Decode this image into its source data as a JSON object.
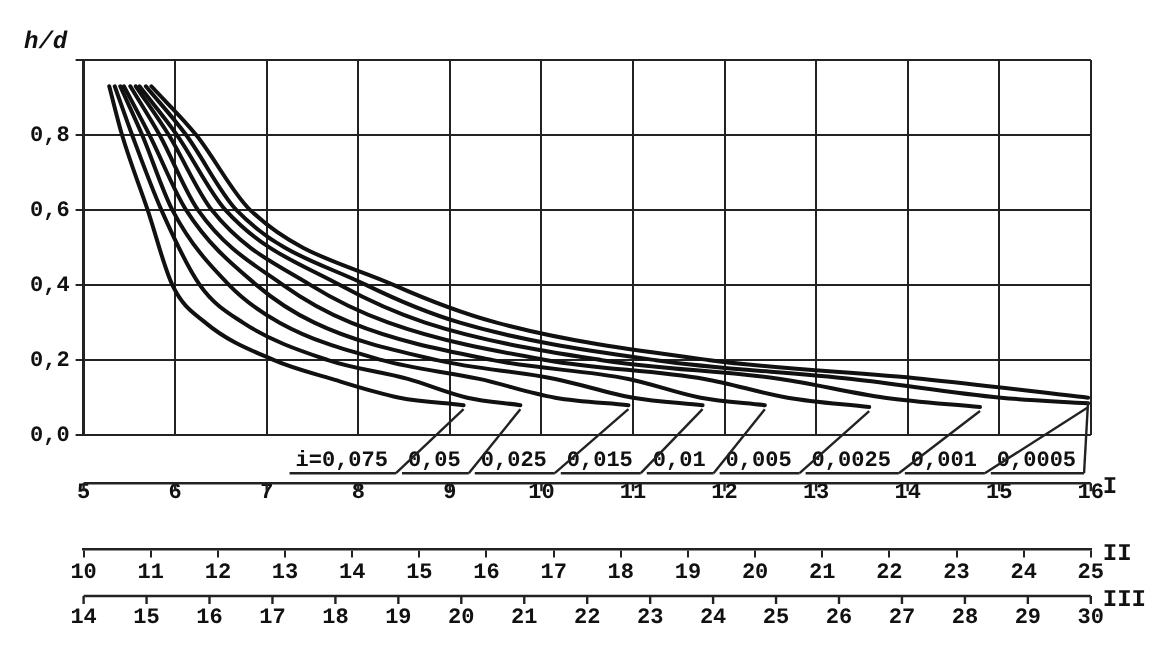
{
  "chart_data": {
    "type": "line",
    "ylabel": "h/d",
    "xlabel": "I",
    "x2label": "II",
    "annotations": [
      "III",
      "14",
      "15",
      "16",
      "17",
      "18",
      "19",
      "20",
      "21",
      "22",
      "23",
      "24",
      "25",
      "26",
      "27",
      "28",
      "29",
      "30"
    ],
    "xlim": [
      5,
      16
    ],
    "xticks": [
      5,
      6,
      7,
      8,
      9,
      10,
      11,
      12,
      13,
      14,
      15,
      16
    ],
    "x2lim": [
      10,
      25
    ],
    "x2ticks": [
      10,
      11,
      12,
      13,
      14,
      15,
      16,
      17,
      18,
      19,
      20,
      21,
      22,
      23,
      24,
      25
    ],
    "ylim": [
      0,
      1
    ],
    "yticks": [
      {
        "value": 0,
        "label": "0,0"
      },
      {
        "value": 0.2,
        "label": "0,2"
      },
      {
        "value": 0.4,
        "label": "0,4"
      },
      {
        "value": 0.6,
        "label": "0,6"
      },
      {
        "value": 0.8,
        "label": "0,8"
      },
      {
        "value": 1,
        "label": null
      }
    ],
    "grid": true,
    "marker": "none",
    "line_style": "solid",
    "legend": false,
    "series": [
      {
        "name": "i=0,075",
        "color": "#111111",
        "x": [
          5.28,
          5.42,
          5.7,
          5.97,
          6.33,
          7.08,
          7.71,
          8.45,
          9.15
        ],
        "values": [
          0.93,
          0.8,
          0.6,
          0.4,
          0.3,
          0.2,
          0.15,
          0.1,
          0.08
        ]
      },
      {
        "name": "0,05",
        "color": "#111111",
        "x": [
          5.34,
          5.53,
          5.85,
          6.27,
          6.74,
          7.67,
          8.54,
          9.19,
          9.77
        ],
        "values": [
          0.93,
          0.8,
          0.6,
          0.4,
          0.3,
          0.2,
          0.15,
          0.1,
          0.08
        ]
      },
      {
        "name": "0,025",
        "color": "#111111",
        "x": [
          5.4,
          5.64,
          5.97,
          6.59,
          7.14,
          8.26,
          9.32,
          10.15,
          10.95
        ],
        "values": [
          0.93,
          0.8,
          0.6,
          0.4,
          0.3,
          0.2,
          0.15,
          0.1,
          0.08
        ]
      },
      {
        "name": "0,015",
        "color": "#111111",
        "x": [
          5.44,
          5.72,
          6.12,
          6.89,
          7.52,
          8.86,
          10.15,
          11.0,
          11.76
        ],
        "values": [
          0.93,
          0.8,
          0.6,
          0.4,
          0.3,
          0.2,
          0.15,
          0.1,
          0.08
        ]
      },
      {
        "name": "0,01",
        "color": "#111111",
        "x": [
          5.51,
          5.83,
          6.25,
          7.18,
          7.92,
          9.47,
          10.95,
          11.74,
          12.44
        ],
        "values": [
          0.93,
          0.8,
          0.6,
          0.4,
          0.3,
          0.2,
          0.15,
          0.1,
          0.08
        ]
      },
      {
        "name": "0,005",
        "color": "#111111",
        "x": [
          5.57,
          5.93,
          6.4,
          7.48,
          8.33,
          10.06,
          11.78,
          12.69,
          13.58
        ],
        "values": [
          0.93,
          0.8,
          0.6,
          0.4,
          0.3,
          0.2,
          0.15,
          0.1,
          0.075
        ]
      },
      {
        "name": "0,0025",
        "color": "#111111",
        "x": [
          5.61,
          6.02,
          6.55,
          7.8,
          8.73,
          10.66,
          12.61,
          13.75,
          14.79
        ],
        "values": [
          0.93,
          0.8,
          0.6,
          0.4,
          0.3,
          0.2,
          0.15,
          0.1,
          0.075
        ]
      },
      {
        "name": "0,001",
        "color": "#111111",
        "x": [
          5.68,
          6.12,
          6.67,
          8.09,
          9.11,
          11.25,
          13.39,
          15.02,
          15.97
        ],
        "values": [
          0.93,
          0.8,
          0.6,
          0.4,
          0.3,
          0.2,
          0.15,
          0.1,
          0.085
        ]
      },
      {
        "name": "0,0005",
        "color": "#111111",
        "x": [
          5.74,
          6.23,
          6.82,
          8.39,
          9.51,
          11.84,
          14.17,
          15.97
        ],
        "values": [
          0.93,
          0.8,
          0.6,
          0.4,
          0.3,
          0.2,
          0.15,
          0.1
        ]
      }
    ]
  }
}
